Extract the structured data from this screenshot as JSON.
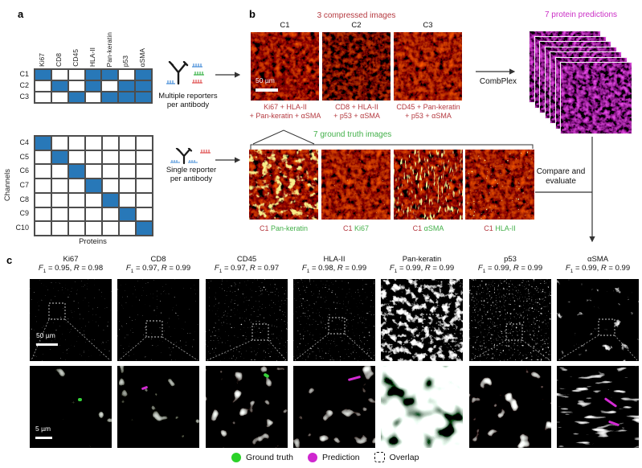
{
  "panel_labels": {
    "a": "a",
    "b": "b",
    "c": "c"
  },
  "panel_a": {
    "top_matrix": {
      "col_labels": [
        "Ki67",
        "CD8",
        "CD45",
        "HLA-II",
        "Pan-keratin",
        "p53",
        "αSMA"
      ],
      "row_labels": [
        "C1",
        "C2",
        "C3"
      ],
      "filled": [
        [
          1,
          0,
          0,
          1,
          1,
          0,
          1
        ],
        [
          0,
          1,
          0,
          1,
          0,
          1,
          1
        ],
        [
          0,
          0,
          1,
          0,
          1,
          1,
          1
        ]
      ]
    },
    "bottom_matrix": {
      "row_labels": [
        "C4",
        "C5",
        "C6",
        "C7",
        "C8",
        "C9",
        "C10"
      ],
      "filled": [
        [
          1,
          0,
          0,
          0,
          0,
          0,
          0
        ],
        [
          0,
          1,
          0,
          0,
          0,
          0,
          0
        ],
        [
          0,
          0,
          1,
          0,
          0,
          0,
          0
        ],
        [
          0,
          0,
          0,
          1,
          0,
          0,
          0
        ],
        [
          0,
          0,
          0,
          0,
          1,
          0,
          0
        ],
        [
          0,
          0,
          0,
          0,
          0,
          1,
          0
        ],
        [
          0,
          0,
          0,
          0,
          0,
          0,
          1
        ]
      ],
      "y_axis_label": "Channels",
      "x_axis_label": "Proteins"
    },
    "multiple_reporters": {
      "line1": "Multiple reporters",
      "line2": "per antibody"
    },
    "single_reporter": {
      "line1": "Single reporter",
      "line2": "per antibody"
    }
  },
  "panel_b": {
    "compressed_title": "3 compressed images",
    "channels": [
      "C1",
      "C2",
      "C3"
    ],
    "compressed_labels": [
      {
        "line1": "Ki67 + HLA-II",
        "line2": "+ Pan-keratin + αSMA"
      },
      {
        "line1": "CD8 + HLA-II",
        "line2": "+ p53 + αSMA"
      },
      {
        "line1": "CD45 + Pan-keratin",
        "line2": "+ p53 + αSMA"
      }
    ],
    "scale_bar": "50 µm",
    "combplex": "CombPlex",
    "predictions_title": "7 protein predictions",
    "ground_truth_title": "7 ground truth images",
    "ground_truth_labels": [
      {
        "channel": "C1",
        "protein": "Pan-keratin"
      },
      {
        "channel": "C1",
        "protein": "Ki67"
      },
      {
        "channel": "C1",
        "protein": "αSMA"
      },
      {
        "channel": "C1",
        "protein": "HLA-II"
      }
    ],
    "compare": {
      "line1": "Compare and",
      "line2": "evaluate"
    }
  },
  "panel_c": {
    "stats_tokens": {
      "f": "F",
      "f_sub": "1",
      "eq": "=",
      "sep": ",",
      "r": "R"
    },
    "columns": [
      {
        "protein": "Ki67",
        "f1": "0.95",
        "r": "0.98"
      },
      {
        "protein": "CD8",
        "f1": "0.97",
        "r": "0.99"
      },
      {
        "protein": "CD45",
        "f1": "0.97",
        "r": "0.97"
      },
      {
        "protein": "HLA-II",
        "f1": "0.98",
        "r": "0.99"
      },
      {
        "protein": "Pan-keratin",
        "f1": "0.99",
        "r": "0.99"
      },
      {
        "protein": "p53",
        "f1": "0.99",
        "r": "0.99"
      },
      {
        "protein": "αSMA",
        "f1": "0.99",
        "r": "0.99"
      }
    ],
    "scale_bar_top": "50 µm",
    "scale_bar_bottom": "5 µm",
    "legend": {
      "ground_truth": "Ground truth",
      "prediction": "Prediction",
      "overlap": "Overlap"
    }
  },
  "colors": {
    "crimson": "#b53a40",
    "magenta": "#cb2fc6",
    "green": "#43b04a",
    "legend_green": "#2bd229",
    "legend_magenta": "#cf27cf",
    "matrix_blue": "#2878b8"
  }
}
